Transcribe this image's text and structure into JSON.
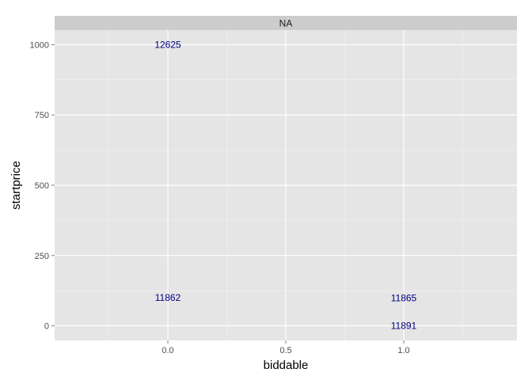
{
  "chart_data": {
    "type": "scatter",
    "facet_label": "NA",
    "xlabel": "biddable",
    "ylabel": "startprice",
    "xlim": [
      -0.48,
      1.48
    ],
    "ylim": [
      -52,
      1052
    ],
    "x_ticks": [
      0.0,
      0.5,
      1.0
    ],
    "x_tick_labels": [
      "0.0",
      "0.5",
      "1.0"
    ],
    "x_minor_ticks": [
      -0.25,
      0.25,
      0.75,
      1.25
    ],
    "y_ticks": [
      0,
      250,
      500,
      750,
      1000
    ],
    "y_tick_labels": [
      "0",
      "250",
      "500",
      "750",
      "1000"
    ],
    "y_minor_ticks": [
      125,
      375,
      625,
      875
    ],
    "grid": true,
    "label_color": "#000080",
    "points": [
      {
        "x": 0,
        "y": 1000,
        "label": "12625"
      },
      {
        "x": 0,
        "y": 100,
        "label": "11862"
      },
      {
        "x": 1,
        "y": 99,
        "label": "11865"
      },
      {
        "x": 1,
        "y": 0,
        "label": "11891"
      }
    ]
  },
  "colors": {
    "panel_background": "#e5e5e5",
    "strip_background": "#cccccc",
    "grid_major": "#ffffff",
    "grid_minor": "#f2f2f2"
  }
}
